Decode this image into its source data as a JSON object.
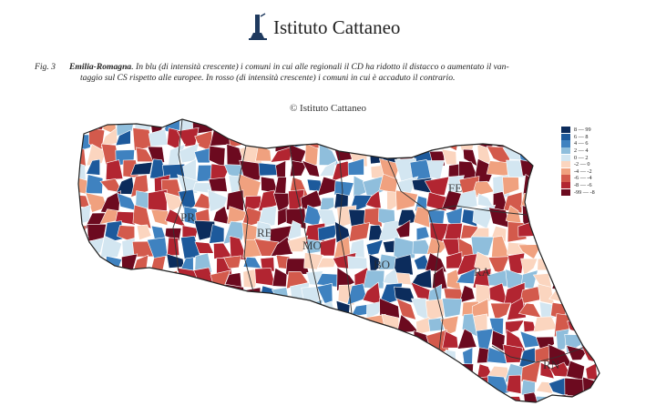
{
  "brand": {
    "name": "Istituto Cattaneo",
    "logo_icon": "tower-icon"
  },
  "caption": {
    "fig": "Fig. 3",
    "region": "Emilia-Romagna",
    "text_line1": ". In blu (di intensità crescente) i comuni in cui alle regionali il CD ha ridotto il distacco o aumentato il van-",
    "text_line2": "taggio sul CS rispetto alle europee. In rosso (di intensità crescente) i comuni in cui è accaduto il contrario."
  },
  "credit": "© Istituto Cattaneo",
  "legend": [
    {
      "label": "8 — 99",
      "color": "#0c2c5c"
    },
    {
      "label": "6 — 8",
      "color": "#1d5a9c"
    },
    {
      "label": "4 — 6",
      "color": "#3f82c0"
    },
    {
      "label": "2 — 4",
      "color": "#8fbedc"
    },
    {
      "label": "0 — 2",
      "color": "#d3e6f1"
    },
    {
      "label": "-2 — 0",
      "color": "#fbd5bf"
    },
    {
      "label": "-4 — -2",
      "color": "#f0a17f"
    },
    {
      "label": "-6 — -4",
      "color": "#d35a4c"
    },
    {
      "label": "-8 — -6",
      "color": "#b22531"
    },
    {
      "label": "-99 — -8",
      "color": "#6c0a1f"
    }
  ],
  "provinces": [
    "PC",
    "PR",
    "RE",
    "MO",
    "BO",
    "FE",
    "RA",
    "RN"
  ]
}
